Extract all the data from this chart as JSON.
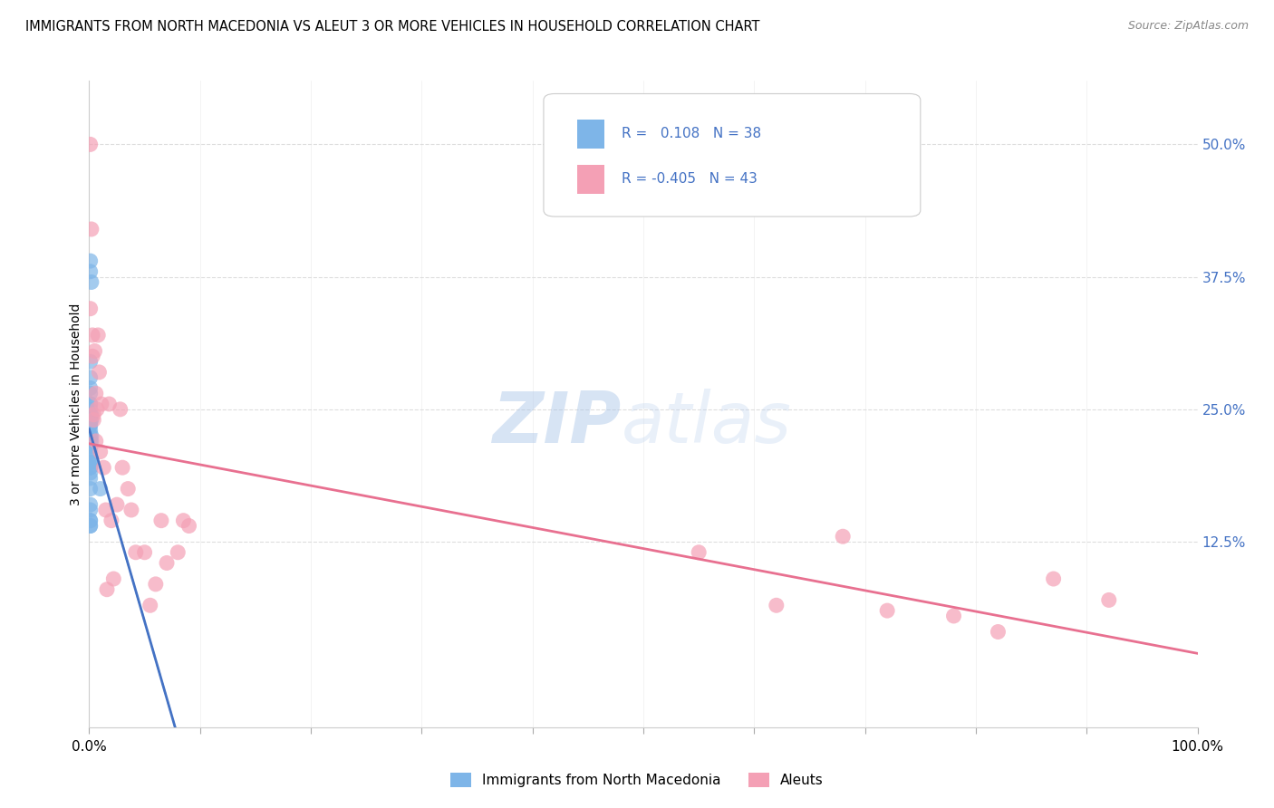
{
  "title": "IMMIGRANTS FROM NORTH MACEDONIA VS ALEUT 3 OR MORE VEHICLES IN HOUSEHOLD CORRELATION CHART",
  "source": "Source: ZipAtlas.com",
  "ylabel": "3 or more Vehicles in Household",
  "ytick_labels": [
    "12.5%",
    "25.0%",
    "37.5%",
    "50.0%"
  ],
  "ytick_vals": [
    0.125,
    0.25,
    0.375,
    0.5
  ],
  "legend1_R": 0.108,
  "legend1_N": 38,
  "legend2_R": -0.405,
  "legend2_N": 43,
  "blue_color": "#7EB5E8",
  "pink_color": "#F4A0B5",
  "blue_line_color": "#4472C4",
  "pink_line_color": "#E87090",
  "background_color": "#FFFFFF",
  "grid_color": "#DDDDDD",
  "blue_scatter_x": [
    0.001,
    0.001,
    0.002,
    0.001,
    0.001,
    0.001,
    0.001,
    0.001,
    0.001,
    0.001,
    0.001,
    0.002,
    0.002,
    0.001,
    0.001,
    0.001,
    0.001,
    0.001,
    0.002,
    0.001,
    0.002,
    0.001,
    0.001,
    0.001,
    0.001,
    0.001,
    0.001,
    0.001,
    0.001,
    0.001,
    0.001,
    0.001,
    0.001,
    0.01,
    0.001,
    0.001,
    0.001,
    0.001
  ],
  "blue_scatter_y": [
    0.39,
    0.38,
    0.37,
    0.295,
    0.28,
    0.27,
    0.265,
    0.255,
    0.255,
    0.25,
    0.245,
    0.245,
    0.24,
    0.24,
    0.235,
    0.235,
    0.23,
    0.225,
    0.225,
    0.22,
    0.22,
    0.215,
    0.21,
    0.205,
    0.2,
    0.2,
    0.195,
    0.195,
    0.19,
    0.185,
    0.175,
    0.16,
    0.155,
    0.175,
    0.145,
    0.145,
    0.14,
    0.14
  ],
  "pink_scatter_x": [
    0.001,
    0.001,
    0.002,
    0.003,
    0.003,
    0.004,
    0.004,
    0.005,
    0.006,
    0.006,
    0.007,
    0.008,
    0.009,
    0.01,
    0.011,
    0.013,
    0.015,
    0.016,
    0.018,
    0.02,
    0.022,
    0.025,
    0.028,
    0.03,
    0.035,
    0.038,
    0.042,
    0.05,
    0.055,
    0.06,
    0.065,
    0.07,
    0.08,
    0.085,
    0.09,
    0.55,
    0.62,
    0.68,
    0.72,
    0.78,
    0.82,
    0.87,
    0.92
  ],
  "pink_scatter_y": [
    0.5,
    0.345,
    0.42,
    0.3,
    0.32,
    0.245,
    0.24,
    0.305,
    0.265,
    0.22,
    0.25,
    0.32,
    0.285,
    0.21,
    0.255,
    0.195,
    0.155,
    0.08,
    0.255,
    0.145,
    0.09,
    0.16,
    0.25,
    0.195,
    0.175,
    0.155,
    0.115,
    0.115,
    0.065,
    0.085,
    0.145,
    0.105,
    0.115,
    0.145,
    0.14,
    0.115,
    0.065,
    0.13,
    0.06,
    0.055,
    0.04,
    0.09,
    0.07
  ],
  "xlim": [
    0.0,
    1.0
  ],
  "ylim": [
    -0.05,
    0.56
  ],
  "blue_line_x0": 0.0,
  "blue_line_x1": 1.0,
  "pink_line_x0": 0.0,
  "pink_line_x1": 1.0
}
